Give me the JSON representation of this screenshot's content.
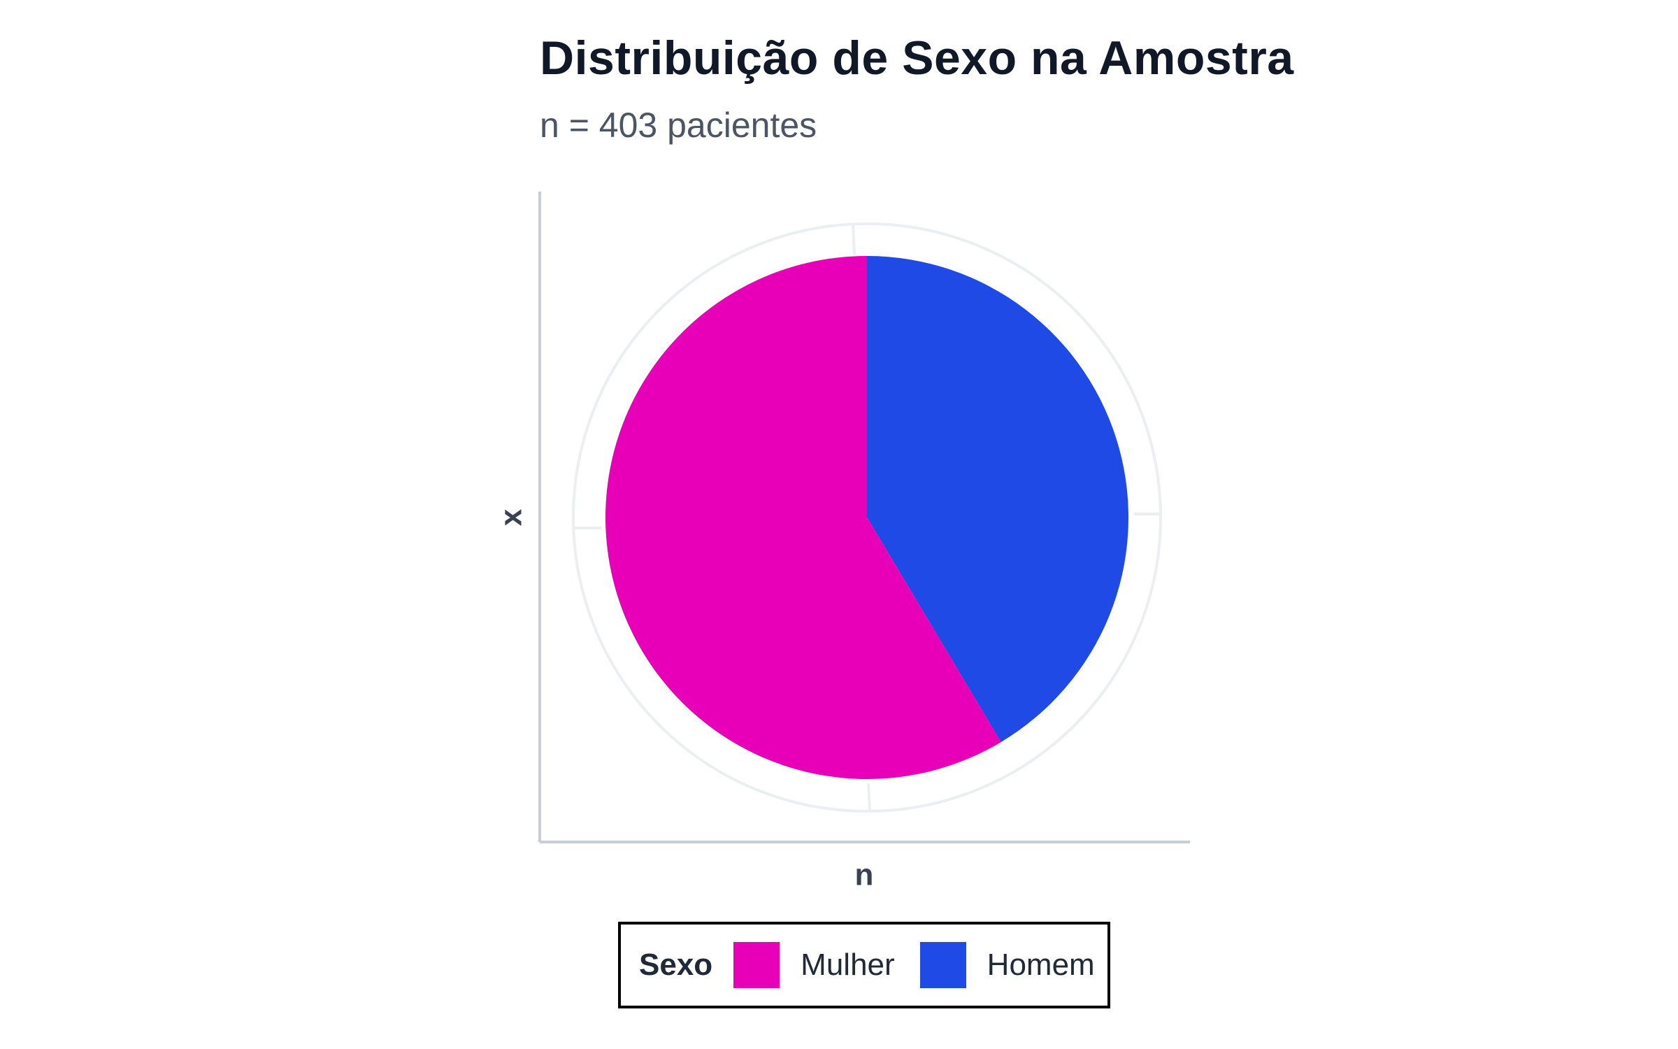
{
  "header": {
    "title": "Distribuição de Sexo na Amostra",
    "subtitle": "n = 403 pacientes"
  },
  "chart_data": {
    "type": "pie",
    "title": "Distribuição de Sexo na Amostra",
    "subtitle": "n = 403 pacientes",
    "xlabel": "n",
    "ylabel": "x",
    "legend_title": "Sexo",
    "legend_placement": "bottom",
    "grid": true,
    "total": 403,
    "categories": [
      "Mulher",
      "Homem"
    ],
    "values": [
      236,
      167
    ],
    "colors": [
      "#e800b8",
      "#1f4ae6"
    ],
    "start": "12 o'clock",
    "direction": "clockwise",
    "first_slice_drawn": "Homem"
  },
  "legend": {
    "title": "Sexo",
    "items": [
      {
        "label": "Mulher",
        "color": "#e800b8"
      },
      {
        "label": "Homem",
        "color": "#1f4ae6"
      }
    ]
  }
}
